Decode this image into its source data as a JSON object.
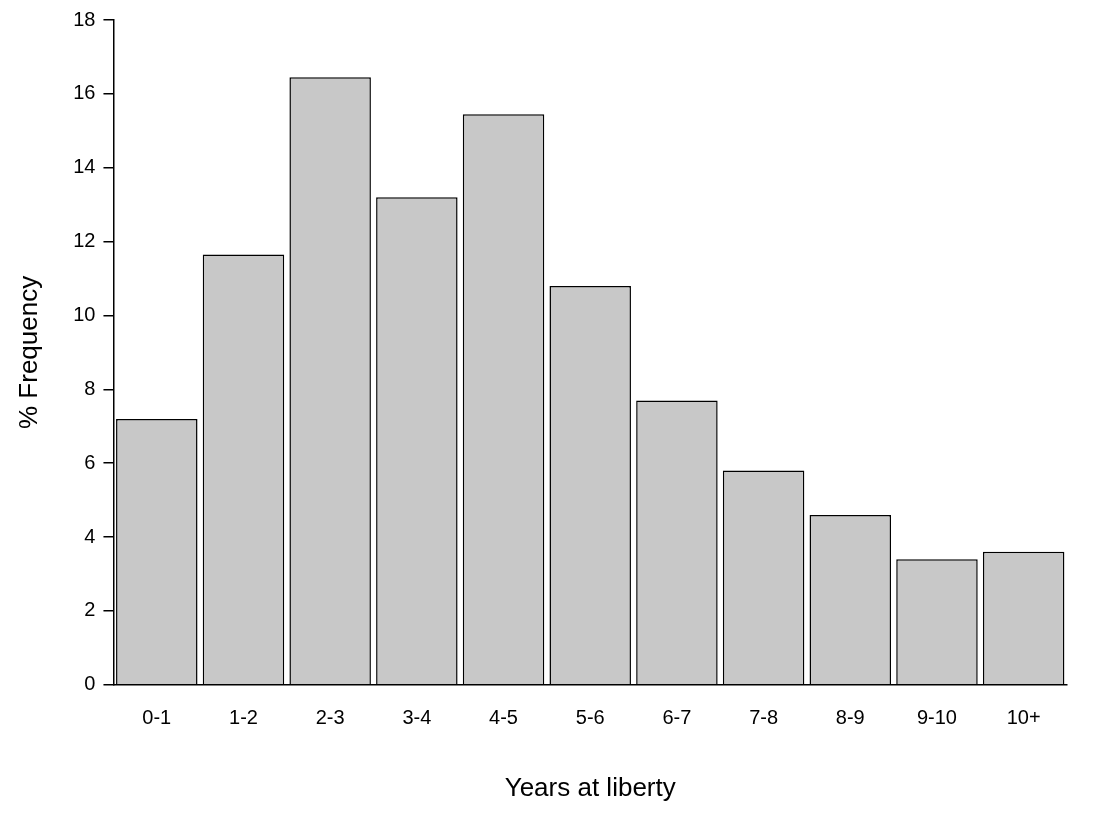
{
  "chart_data": {
    "type": "bar",
    "xlabel": "Years at liberty",
    "ylabel": "% Frequency",
    "categories": [
      "0-1",
      "1-2",
      "2-3",
      "3-4",
      "4-5",
      "5-6",
      "6-7",
      "7-8",
      "8-9",
      "9-10",
      "10+"
    ],
    "values": [
      7.2,
      11.65,
      16.45,
      13.2,
      15.45,
      10.8,
      7.7,
      5.8,
      4.6,
      3.4,
      3.6
    ],
    "color": "#c8c8c8",
    "ylim": [
      0,
      18
    ],
    "yticks": [
      0,
      2,
      4,
      6,
      8,
      10,
      12,
      14,
      16,
      18
    ],
    "grid": false,
    "legend": false
  }
}
